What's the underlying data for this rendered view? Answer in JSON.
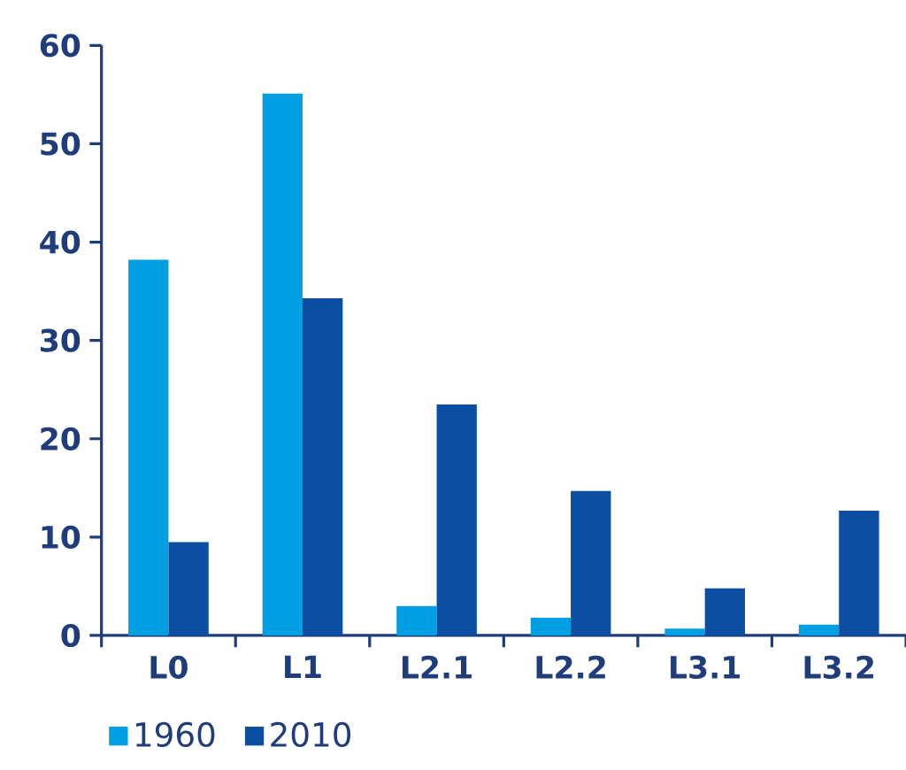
{
  "chart_data": {
    "type": "bar",
    "categories": [
      "L0",
      "L1",
      "L2.1",
      "L2.2",
      "L3.1",
      "L3.2"
    ],
    "series": [
      {
        "name": "1960",
        "color": "#009fe3",
        "values": [
          38.2,
          55.1,
          3.0,
          1.8,
          0.7,
          1.1
        ]
      },
      {
        "name": "2010",
        "color": "#0b4ea2",
        "values": [
          9.5,
          34.3,
          23.5,
          14.7,
          4.8,
          12.7
        ]
      }
    ],
    "ylim": [
      0,
      60
    ],
    "yticks": [
      0,
      10,
      20,
      30,
      40,
      50,
      60
    ],
    "legend": "bottom left"
  }
}
